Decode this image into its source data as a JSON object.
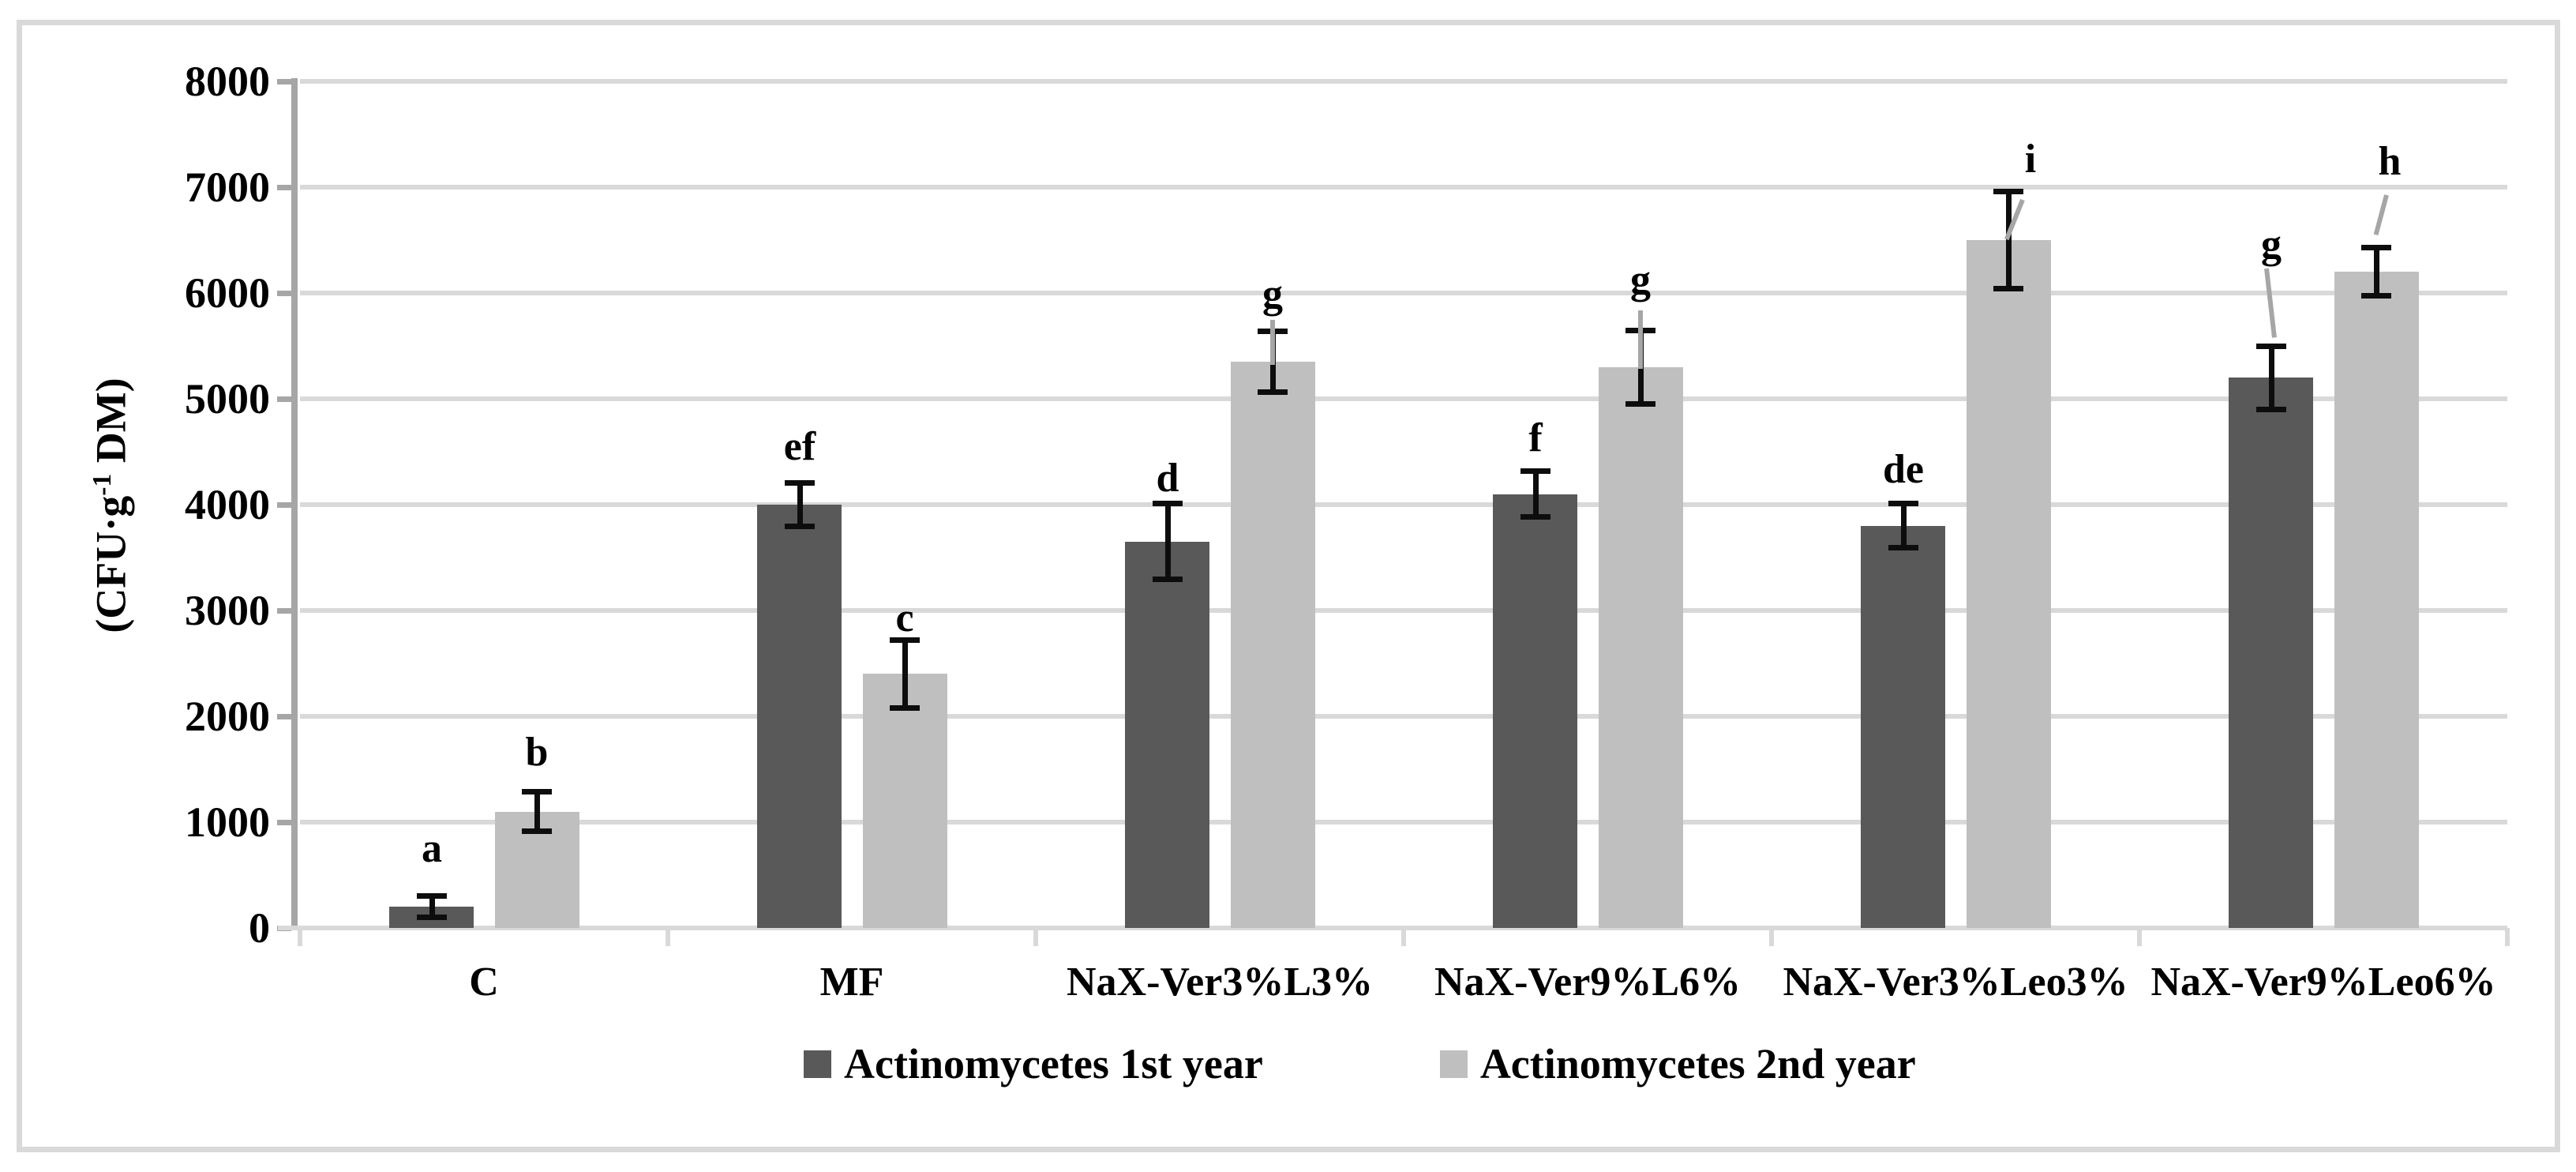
{
  "figure": {
    "background_color": "#ffffff",
    "frame_color": "#d9d9d9"
  },
  "chart_data": {
    "type": "bar",
    "title": "",
    "xlabel": "",
    "ylabel": "(CFU·g⁻¹ DM)",
    "ylabel_parts": {
      "prefix": "(CFU·g",
      "sup": "-1",
      "suffix": " DM)"
    },
    "ylim": [
      0,
      8000
    ],
    "ytick_step": 1000,
    "yticks": [
      0,
      1000,
      2000,
      3000,
      4000,
      5000,
      6000,
      7000,
      8000
    ],
    "grid": "horizontal-on",
    "gridline_color": "#d9d9d9",
    "axis_color": "#a6a6a6",
    "baseline_color": "#d9d9d9",
    "error_bar_color": "#0d0d0d",
    "leader_line_color": "#a6a6a6",
    "legend_position": "bottom",
    "categories": [
      "C",
      "MF",
      "NaX-Ver3%L3%",
      "NaX-Ver9%L6%",
      "NaX-Ver3%Leo3%",
      "NaX-Ver9%Leo6%"
    ],
    "series": [
      {
        "name": "Actinomycetes 1st year",
        "color": "#595959",
        "values": [
          200,
          4000,
          3650,
          4100,
          3800,
          5200
        ],
        "errors": [
          80,
          190,
          340,
          200,
          190,
          280
        ],
        "sig_labels": [
          "a",
          "ef",
          "d",
          "f",
          "de",
          "g"
        ]
      },
      {
        "name": "Actinomycetes 2nd year",
        "color": "#bfbfbf",
        "values": [
          1100,
          2400,
          5350,
          5300,
          6500,
          6200
        ],
        "errors": [
          170,
          300,
          270,
          330,
          440,
          210
        ],
        "sig_labels": [
          "b",
          "c",
          "g",
          "g",
          "i",
          "h"
        ]
      }
    ]
  }
}
